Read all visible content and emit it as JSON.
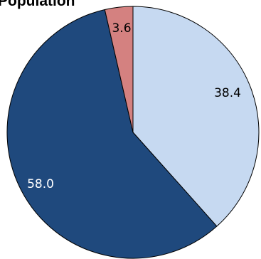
{
  "chart_data": {
    "type": "pie",
    "title": "Population",
    "slices": [
      {
        "label": "38.4",
        "value": 38.4,
        "color": "#c6d9f1",
        "text_color": "#000000"
      },
      {
        "label": "58.0",
        "value": 58.0,
        "color": "#1f497d",
        "text_color": "#ffffff"
      },
      {
        "label": "3.6",
        "value": 3.6,
        "color": "#d48180",
        "text_color": "#000000"
      }
    ],
    "start_angle": "12 o'clock",
    "direction": "clockwise",
    "legend": "none"
  }
}
